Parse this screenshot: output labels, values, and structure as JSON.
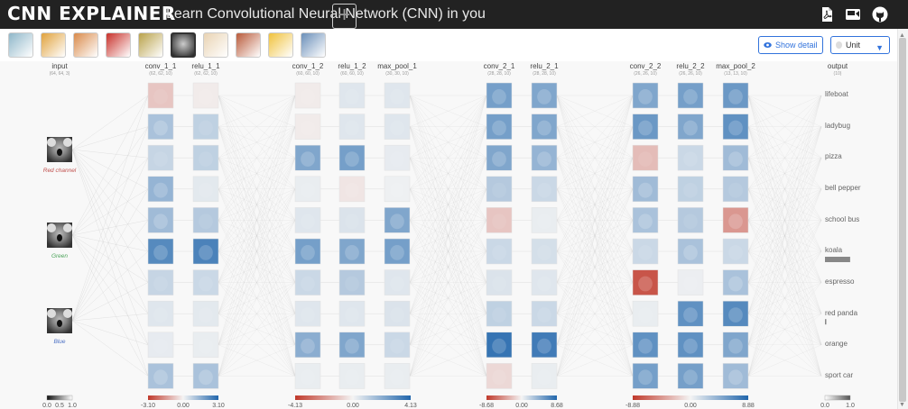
{
  "header": {
    "brand": "CNN EXPLAINER",
    "tagline": "Learn Convolutional Neural Network (CNN) in you",
    "icons": [
      "pdf-icon",
      "video-icon",
      "github-icon"
    ]
  },
  "toolbar": {
    "thumbnails": [
      {
        "name": "thumb-1",
        "color": "#8fb7c9",
        "selected": false
      },
      {
        "name": "thumb-2",
        "color": "#e0a23c",
        "selected": false
      },
      {
        "name": "thumb-3",
        "color": "#d98a4a",
        "selected": false
      },
      {
        "name": "thumb-4",
        "color": "#c8302a",
        "selected": false
      },
      {
        "name": "thumb-5",
        "color": "#b9a24a",
        "selected": false
      },
      {
        "name": "thumb-koala",
        "color": "#555555",
        "selected": true
      },
      {
        "name": "thumb-7",
        "color": "#e9d3b3",
        "selected": false
      },
      {
        "name": "thumb-8",
        "color": "#b95a3a",
        "selected": false
      },
      {
        "name": "thumb-9",
        "color": "#f0c23c",
        "selected": false
      },
      {
        "name": "thumb-10",
        "color": "#6a8fb9",
        "selected": false
      }
    ],
    "add_label": "+",
    "show_detail_label": "Show detail",
    "unit_label": "Unit"
  },
  "network": {
    "input": {
      "name": "input",
      "dims": "(64, 64, 3)"
    },
    "channels": [
      {
        "label": "Red channel",
        "color": "#c0504d"
      },
      {
        "label": "Green",
        "color": "#4ca35a"
      },
      {
        "label": "Blue",
        "color": "#4a6fc4"
      }
    ],
    "layers": [
      {
        "name": "conv_1_1",
        "dims": "(62, 62, 10)"
      },
      {
        "name": "relu_1_1",
        "dims": "(62, 62, 10)"
      },
      {
        "name": "conv_1_2",
        "dims": "(60, 60, 10)"
      },
      {
        "name": "relu_1_2",
        "dims": "(60, 60, 10)"
      },
      {
        "name": "max_pool_1",
        "dims": "(30, 30, 10)"
      },
      {
        "name": "conv_2_1",
        "dims": "(28, 28, 10)"
      },
      {
        "name": "relu_2_1",
        "dims": "(28, 28, 10)"
      },
      {
        "name": "conv_2_2",
        "dims": "(26, 26, 10)"
      },
      {
        "name": "relu_2_2",
        "dims": "(26, 26, 10)"
      },
      {
        "name": "max_pool_2",
        "dims": "(13, 13, 10)"
      }
    ],
    "output": {
      "name": "output",
      "dims": "(10)",
      "classes": [
        "lifeboat",
        "ladybug",
        "pizza",
        "bell pepper",
        "school bus",
        "koala",
        "espresso",
        "red panda",
        "orange",
        "sport car"
      ],
      "probabilities": [
        0.0,
        0.0,
        0.0,
        0.0,
        0.0,
        0.93,
        0.0,
        0.05,
        0.0,
        0.0
      ]
    },
    "legends": [
      {
        "name": "input-legend",
        "ticks": [
          "0.0",
          "0.5",
          "1.0"
        ]
      },
      {
        "name": "block1-legend",
        "ticks": [
          "-3.10",
          "0.00",
          "3.10"
        ]
      },
      {
        "name": "block2-legend",
        "ticks": [
          "-4.13",
          "0.00",
          "4.13"
        ]
      },
      {
        "name": "block3-legend",
        "ticks": [
          "-8.68",
          "0.00",
          "8.68"
        ]
      },
      {
        "name": "block4-legend",
        "ticks": [
          "-8.88",
          "0.00",
          "8.88"
        ]
      },
      {
        "name": "output-legend",
        "ticks": [
          "0.0",
          "1.0"
        ]
      }
    ],
    "activation_colors": {
      "negative": "#c0392b",
      "zero": "#f4f4f4",
      "positive": "#2166ac"
    },
    "activations": [
      [
        -0.25,
        -0.05,
        0.35,
        0.25,
        0.22,
        0.25,
        0.45,
        0.08,
        0.4,
        0.3,
        0.75,
        0.8,
        0.22,
        0.2,
        0.1,
        0.08,
        0.06,
        0.05,
        0.35,
        0.35
      ],
      [
        -0.05,
        0.1,
        0.1,
        -0.05,
        0.1,
        0.1,
        0.55,
        0.6,
        0.06,
        0.05,
        -0.08,
        0.03,
        0.1,
        0.12,
        0.55,
        0.6,
        0.55,
        0.6,
        0.2,
        0.3,
        0.1,
        0.1,
        0.1,
        0.12,
        0.5,
        0.55,
        0.2
      ],
      [
        0.6,
        0.55,
        0.6,
        0.55,
        0.55,
        0.45,
        0.3,
        0.2,
        -0.25,
        0.05,
        0.2,
        0.15,
        0.12,
        0.1,
        0.25,
        0.2,
        0.9,
        0.85,
        -0.15,
        0.05
      ],
      [
        0.55,
        0.6,
        0.65,
        0.65,
        0.55,
        0.7,
        -0.3,
        0.2,
        0.4,
        0.4,
        0.25,
        0.3,
        0.35,
        0.3,
        -0.5,
        0.2,
        0.35,
        0.2,
        -0.85,
        0.04,
        0.35,
        0.05,
        0.7,
        0.75,
        0.7,
        0.7,
        0.55,
        0.6,
        0.6,
        0.4
      ]
    ]
  }
}
